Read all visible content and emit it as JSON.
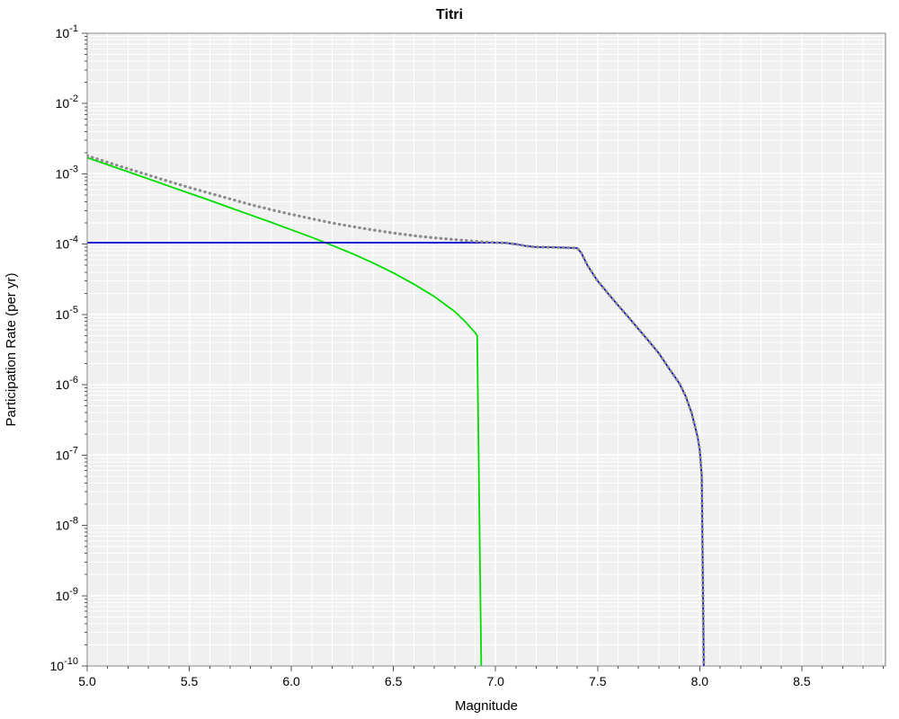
{
  "chart_data": {
    "type": "line",
    "title": "Titri",
    "xlabel": "Magnitude",
    "ylabel": "Participation Rate (per yr)",
    "xlim": [
      5.0,
      8.91
    ],
    "ylim": [
      1e-10,
      0.1
    ],
    "ylog": true,
    "grid": true,
    "legend": "none",
    "x_ticks": [
      5.0,
      5.5,
      6.0,
      6.5,
      7.0,
      7.5,
      8.0,
      8.5
    ],
    "x_tick_labels": [
      "5.0",
      "5.5",
      "6.0",
      "6.5",
      "7.0",
      "7.5",
      "8.0",
      "8.5"
    ],
    "y_tick_exponents": [
      -1,
      -2,
      -3,
      -4,
      -5,
      -6,
      -7,
      -8,
      -9,
      -10
    ],
    "colors": {
      "plot_background": "#f0f0f0",
      "grid_major": "#ffffff",
      "grid_minor": "#ffffff",
      "axis_border": "#808080",
      "tick_mark": "#555555"
    },
    "series": [
      {
        "name": "green-curve",
        "color": "#00dd00",
        "style": "solid",
        "width": 1.8,
        "points": [
          [
            5.0,
            0.0017
          ],
          [
            5.1,
            0.00135
          ],
          [
            5.2,
            0.00107
          ],
          [
            5.3,
            0.00085
          ],
          [
            5.4,
            0.00067
          ],
          [
            5.5,
            0.00053
          ],
          [
            5.6,
            0.00042
          ],
          [
            5.7,
            0.00033
          ],
          [
            5.8,
            0.00026
          ],
          [
            5.9,
            0.000205
          ],
          [
            6.0,
            0.00016
          ],
          [
            6.1,
            0.000125
          ],
          [
            6.2,
            9.6e-05
          ],
          [
            6.3,
            7.3e-05
          ],
          [
            6.4,
            5.4e-05
          ],
          [
            6.5,
            3.9e-05
          ],
          [
            6.6,
            2.7e-05
          ],
          [
            6.7,
            1.8e-05
          ],
          [
            6.8,
            1.1e-05
          ],
          [
            6.85,
            8e-06
          ],
          [
            6.9,
            5.5e-06
          ],
          [
            6.91,
            5e-06
          ],
          [
            6.93,
            1e-10
          ]
        ]
      },
      {
        "name": "blue-curve",
        "color": "#0000c8",
        "style": "solid",
        "width": 1.8,
        "points": [
          [
            5.0,
            0.000105
          ],
          [
            7.0,
            0.000105
          ],
          [
            7.05,
            0.000104
          ],
          [
            7.1,
            0.0001
          ],
          [
            7.15,
            9.4e-05
          ],
          [
            7.2,
            9.1e-05
          ],
          [
            7.3,
            9e-05
          ],
          [
            7.4,
            8.8e-05
          ],
          [
            7.42,
            7.5e-05
          ],
          [
            7.45,
            5e-05
          ],
          [
            7.5,
            3e-05
          ],
          [
            7.55,
            2e-05
          ],
          [
            7.6,
            1.35e-05
          ],
          [
            7.65,
            9.2e-06
          ],
          [
            7.7,
            6.2e-06
          ],
          [
            7.75,
            4.2e-06
          ],
          [
            7.8,
            2.8e-06
          ],
          [
            7.85,
            1.7e-06
          ],
          [
            7.9,
            1.05e-06
          ],
          [
            7.93,
            7e-07
          ],
          [
            7.96,
            4e-07
          ],
          [
            7.99,
            1.8e-07
          ],
          [
            8.0,
            1.2e-07
          ],
          [
            8.01,
            5e-08
          ],
          [
            8.02,
            1e-10
          ]
        ]
      },
      {
        "name": "gray-dotted-total-curve",
        "color": "#8c8c8c",
        "style": "dotted",
        "width": 3.2,
        "points": [
          [
            5.0,
            0.00181
          ],
          [
            5.1,
            0.00146
          ],
          [
            5.2,
            0.00118
          ],
          [
            5.3,
            0.00096
          ],
          [
            5.4,
            0.00078
          ],
          [
            5.5,
            0.00064
          ],
          [
            5.6,
            0.00053
          ],
          [
            5.7,
            0.00044
          ],
          [
            5.8,
            0.000365
          ],
          [
            5.9,
            0.00031
          ],
          [
            6.0,
            0.000265
          ],
          [
            6.1,
            0.00023
          ],
          [
            6.2,
            0.0002
          ],
          [
            6.3,
            0.000178
          ],
          [
            6.4,
            0.000159
          ],
          [
            6.5,
            0.000144
          ],
          [
            6.6,
            0.000132
          ],
          [
            6.7,
            0.000123
          ],
          [
            6.8,
            0.000116
          ],
          [
            6.9,
            0.00011
          ],
          [
            7.0,
            0.000105
          ],
          [
            7.05,
            0.000104
          ],
          [
            7.1,
            0.0001
          ],
          [
            7.15,
            9.4e-05
          ],
          [
            7.2,
            9.1e-05
          ],
          [
            7.3,
            9e-05
          ],
          [
            7.4,
            8.8e-05
          ],
          [
            7.42,
            7.5e-05
          ],
          [
            7.45,
            5e-05
          ],
          [
            7.5,
            3e-05
          ],
          [
            7.55,
            2e-05
          ],
          [
            7.6,
            1.35e-05
          ],
          [
            7.65,
            9.2e-06
          ],
          [
            7.7,
            6.2e-06
          ],
          [
            7.75,
            4.2e-06
          ],
          [
            7.8,
            2.8e-06
          ],
          [
            7.85,
            1.7e-06
          ],
          [
            7.9,
            1.05e-06
          ],
          [
            7.93,
            7e-07
          ],
          [
            7.96,
            4e-07
          ],
          [
            7.99,
            1.8e-07
          ],
          [
            8.0,
            1.2e-07
          ],
          [
            8.01,
            5e-08
          ],
          [
            8.02,
            1e-10
          ]
        ]
      }
    ]
  }
}
